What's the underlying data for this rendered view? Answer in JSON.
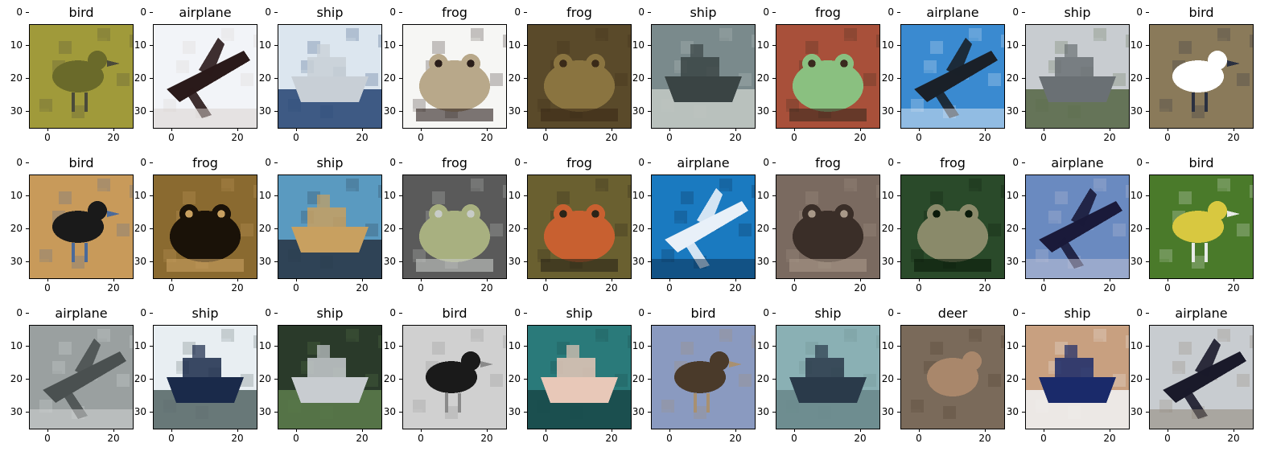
{
  "axes": {
    "yticks": [
      "0",
      "10",
      "20",
      "30"
    ],
    "xticks": [
      "0",
      "20"
    ]
  },
  "subplots": [
    {
      "label": "bird",
      "scene": "bird-on-grass",
      "colors": [
        "#a09a3a",
        "#6a6a2a",
        "#4a4a3a"
      ]
    },
    {
      "label": "airplane",
      "scene": "airplane-dark",
      "colors": [
        "#f2f4f8",
        "#2a1a1a",
        "#d8d0cc"
      ]
    },
    {
      "label": "ship",
      "scene": "ship-white",
      "colors": [
        "#dce6ef",
        "#c8cfd6",
        "#2c4a78"
      ]
    },
    {
      "label": "frog",
      "scene": "frog-white-bg",
      "colors": [
        "#f6f6f4",
        "#b8a88a",
        "#2a1e1a"
      ]
    },
    {
      "label": "frog",
      "scene": "frog-brown",
      "colors": [
        "#5a4a2a",
        "#8a7440",
        "#3a2a18"
      ]
    },
    {
      "label": "ship",
      "scene": "ship-grey",
      "colors": [
        "#7a8a8c",
        "#3a4444",
        "#c0c6c2"
      ]
    },
    {
      "label": "frog",
      "scene": "frog-red-bg",
      "colors": [
        "#a8503a",
        "#8ac080",
        "#3a2a1e"
      ]
    },
    {
      "label": "airplane",
      "scene": "airplane-sky",
      "colors": [
        "#3a8ad0",
        "#1a2028",
        "#e8eef6"
      ]
    },
    {
      "label": "ship",
      "scene": "ship-harbor",
      "colors": [
        "#c8ccd0",
        "#6a7074",
        "#5a6a4a"
      ]
    },
    {
      "label": "bird",
      "scene": "bird-ground",
      "colors": [
        "#8a7a5a",
        "#ffffff",
        "#2a3040"
      ]
    },
    {
      "label": "bird",
      "scene": "ostrich",
      "colors": [
        "#c89a5a",
        "#1a1a1a",
        "#4a6a9a"
      ]
    },
    {
      "label": "frog",
      "scene": "toad",
      "colors": [
        "#8a6a30",
        "#1a1208",
        "#c8a060"
      ]
    },
    {
      "label": "ship",
      "scene": "boat-water",
      "colors": [
        "#5a9ac0",
        "#c8a060",
        "#2a3a4a"
      ]
    },
    {
      "label": "frog",
      "scene": "frog-rock",
      "colors": [
        "#5a5a5a",
        "#a8b080",
        "#c8ccc8"
      ]
    },
    {
      "label": "frog",
      "scene": "frog-leaves",
      "colors": [
        "#6a6030",
        "#c86030",
        "#2a2418"
      ]
    },
    {
      "label": "airplane",
      "scene": "jet-blue",
      "colors": [
        "#1a7ac0",
        "#e8f0f8",
        "#0a2a4a"
      ]
    },
    {
      "label": "frog",
      "scene": "frog-closeup",
      "colors": [
        "#7a6a60",
        "#3a2e28",
        "#a89888"
      ]
    },
    {
      "label": "frog",
      "scene": "frog-green",
      "colors": [
        "#2a4a2a",
        "#8a8a6a",
        "#0a1a0a"
      ]
    },
    {
      "label": "airplane",
      "scene": "plane-dusk",
      "colors": [
        "#6a8ac0",
        "#1a1a3a",
        "#c8c8d8"
      ]
    },
    {
      "label": "bird",
      "scene": "bird-grass",
      "colors": [
        "#4a7a2a",
        "#d8c840",
        "#e8eae8"
      ]
    },
    {
      "label": "airplane",
      "scene": "airplane-grey",
      "colors": [
        "#9aa0a0",
        "#4a5050",
        "#d8dada"
      ]
    },
    {
      "label": "ship",
      "scene": "speedboat",
      "colors": [
        "#e8eef2",
        "#1a2a4a",
        "#5a6a6a"
      ]
    },
    {
      "label": "ship",
      "scene": "pontoon-green",
      "colors": [
        "#2a3a2a",
        "#c8ccd0",
        "#5a7a4a"
      ]
    },
    {
      "label": "bird",
      "scene": "bird-bw",
      "colors": [
        "#d0d0d0",
        "#1a1a1a",
        "#8a8a8a"
      ]
    },
    {
      "label": "ship",
      "scene": "pontoon-teal",
      "colors": [
        "#2a7a7a",
        "#e8c8b8",
        "#1a4a4a"
      ]
    },
    {
      "label": "bird",
      "scene": "ostrich-head",
      "colors": [
        "#8a9ac0",
        "#4a3a2a",
        "#a89070"
      ]
    },
    {
      "label": "ship",
      "scene": "ship-misty",
      "colors": [
        "#8ab0b4",
        "#2a3a4a",
        "#6a8a8c"
      ]
    },
    {
      "label": "deer",
      "scene": "deer-brush",
      "colors": [
        "#8a7a6a",
        "#c8a080",
        "#4a3a2a"
      ]
    },
    {
      "label": "ship",
      "scene": "boat-trailer",
      "colors": [
        "#c8a080",
        "#1a2a6a",
        "#f0f0f0"
      ]
    },
    {
      "label": "airplane",
      "scene": "jet-runway",
      "colors": [
        "#c8ccd0",
        "#1a1a2a",
        "#8a8070"
      ]
    }
  ]
}
